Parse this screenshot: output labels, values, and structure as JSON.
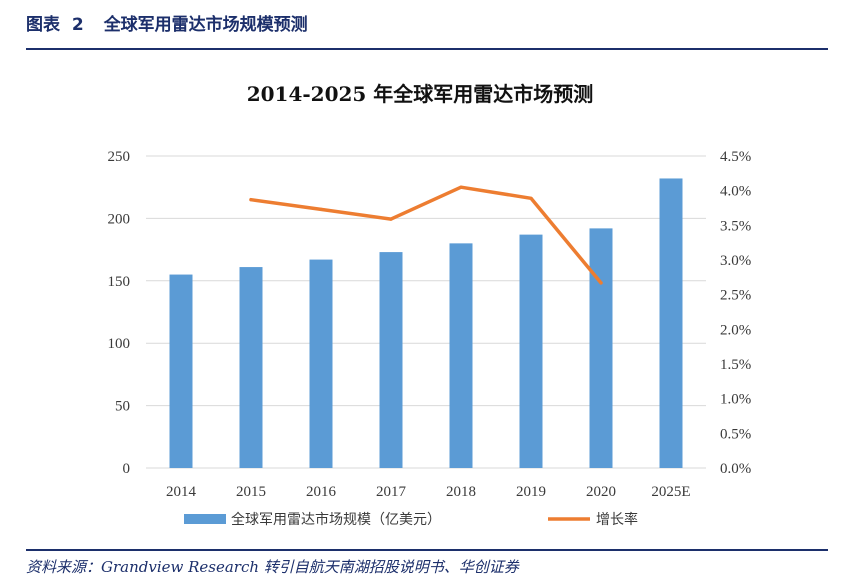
{
  "header": {
    "label": "图表",
    "number": "2",
    "title": "全球军用雷达市场规模预测"
  },
  "footer": {
    "source": "资料来源：Grandview Research 转引自航天南湖招股说明书、华创证券"
  },
  "colors": {
    "bar": "#5b9bd5",
    "line": "#ed7d31",
    "grid": "#d9d9d9",
    "header": "#1c2f6b"
  },
  "chart_data": {
    "type": "bar",
    "title": "2014-2025 年全球军用雷达市场预测",
    "categories": [
      "2014",
      "2015",
      "2016",
      "2017",
      "2018",
      "2019",
      "2020",
      "2025E"
    ],
    "series": [
      {
        "name": "全球军用雷达市场规模（亿美元）",
        "type": "bar",
        "axis": "left",
        "values": [
          155,
          161,
          167,
          173,
          180,
          187,
          192,
          232
        ]
      },
      {
        "name": "增长率",
        "type": "line",
        "axis": "right",
        "values": [
          null,
          0.0387,
          0.0373,
          0.0359,
          0.0405,
          0.0389,
          0.0267,
          null
        ]
      }
    ],
    "y_left": {
      "min": 0,
      "max": 250,
      "ticks": [
        "0",
        "50",
        "100",
        "150",
        "200",
        "250"
      ]
    },
    "y_right": {
      "min": 0,
      "max": 0.045,
      "ticks": [
        "0.0%",
        "0.5%",
        "1.0%",
        "1.5%",
        "2.0%",
        "2.5%",
        "3.0%",
        "3.5%",
        "4.0%",
        "4.5%"
      ]
    },
    "grid": true,
    "legend": "bottom"
  }
}
